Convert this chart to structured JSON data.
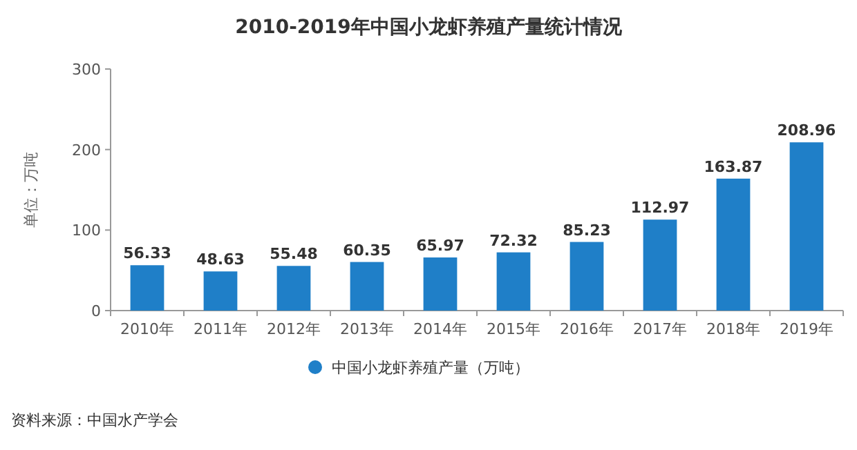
{
  "chart_data": {
    "type": "bar",
    "title": "2010-2019年中国小龙虾养殖产量统计情况",
    "ylabel": "单位：万吨",
    "categories": [
      "2010年",
      "2011年",
      "2012年",
      "2013年",
      "2014年",
      "2015年",
      "2016年",
      "2017年",
      "2018年",
      "2019年"
    ],
    "series": [
      {
        "name": "中国小龙虾养殖产量（万吨）",
        "color": "#1f7fc8",
        "values": [
          56.33,
          48.63,
          55.48,
          60.35,
          65.97,
          72.32,
          85.23,
          112.97,
          163.87,
          208.96
        ]
      }
    ],
    "ylim": [
      0,
      300
    ],
    "yticks": [
      0,
      100,
      200,
      300
    ],
    "data_labels": true,
    "legend": "bottom",
    "annotations": [
      "资料来源：中国水产学会"
    ]
  }
}
